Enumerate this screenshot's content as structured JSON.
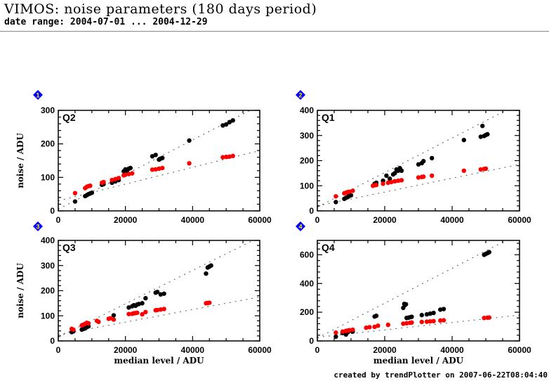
{
  "header": {
    "title": "VIMOS: noise parameters (180 days period)",
    "subtitle": "date range: 2004-07-01 ... 2004-12-29"
  },
  "footer": {
    "created": "created by trendPlotter on 2007-06-22T08:04:40"
  },
  "colors": {
    "series_a": "#000000",
    "series_b": "#ff0000",
    "badge": "#0000ff",
    "badge_text": "#ffee00",
    "fit_line": "#555555"
  },
  "chart_data": [
    {
      "type": "scatter",
      "badge": "1",
      "panel_label": "Q2",
      "xlabel": "",
      "ylabel": "noise / ADU",
      "xlim": [
        0,
        60000
      ],
      "ylim": [
        0,
        300
      ],
      "xticks": [
        0,
        20000,
        40000,
        60000
      ],
      "yticks": [
        0,
        100,
        200,
        300
      ],
      "grid": false,
      "fits": [
        {
          "color": "black",
          "x": [
            0,
            60000
          ],
          "y": [
            5,
            315
          ]
        },
        {
          "color": "red",
          "x": [
            0,
            60000
          ],
          "y": [
            30,
            180
          ]
        }
      ],
      "series": [
        {
          "name": "black",
          "points": [
            [
              5000,
              28
            ],
            [
              8000,
              44
            ],
            [
              8500,
              47
            ],
            [
              9000,
              50
            ],
            [
              9500,
              52
            ],
            [
              10000,
              54
            ],
            [
              13000,
              78
            ],
            [
              13500,
              80
            ],
            [
              16000,
              84
            ],
            [
              17000,
              88
            ],
            [
              18000,
              92
            ],
            [
              19500,
              118
            ],
            [
              20000,
              124
            ],
            [
              20500,
              120
            ],
            [
              21000,
              126
            ],
            [
              21500,
              128
            ],
            [
              28000,
              163
            ],
            [
              29000,
              167
            ],
            [
              30000,
              153
            ],
            [
              30500,
              156
            ],
            [
              31000,
              158
            ],
            [
              39000,
              210
            ],
            [
              49000,
              255
            ],
            [
              50000,
              258
            ],
            [
              51000,
              265
            ],
            [
              52000,
              270
            ]
          ]
        },
        {
          "name": "red",
          "points": [
            [
              5000,
              53
            ],
            [
              8000,
              68
            ],
            [
              8500,
              72
            ],
            [
              9000,
              74
            ],
            [
              9500,
              75
            ],
            [
              13000,
              84
            ],
            [
              13500,
              86
            ],
            [
              16000,
              92
            ],
            [
              17000,
              95
            ],
            [
              18000,
              98
            ],
            [
              19500,
              106
            ],
            [
              20000,
              108
            ],
            [
              21000,
              110
            ],
            [
              22000,
              112
            ],
            [
              28000,
              123
            ],
            [
              29000,
              124
            ],
            [
              30000,
              126
            ],
            [
              31000,
              128
            ],
            [
              39000,
              142
            ],
            [
              49000,
              160
            ],
            [
              50000,
              161
            ],
            [
              51000,
              162
            ],
            [
              52000,
              164
            ]
          ]
        }
      ]
    },
    {
      "type": "scatter",
      "badge": "2",
      "panel_label": "Q1",
      "xlabel": "",
      "ylabel": "",
      "xlim": [
        0,
        60000
      ],
      "ylim": [
        0,
        400
      ],
      "xticks": [
        0,
        20000,
        40000,
        60000
      ],
      "yticks": [
        0,
        100,
        200,
        300,
        400
      ],
      "grid": false,
      "fits": [
        {
          "color": "black",
          "x": [
            0,
            56000
          ],
          "y": [
            15,
            400
          ]
        },
        {
          "color": "red",
          "x": [
            0,
            60000
          ],
          "y": [
            20,
            185
          ]
        }
      ],
      "series": [
        {
          "name": "black",
          "points": [
            [
              5500,
              35
            ],
            [
              8000,
              48
            ],
            [
              8500,
              52
            ],
            [
              9000,
              55
            ],
            [
              9500,
              60
            ],
            [
              10000,
              62
            ],
            [
              17000,
              108
            ],
            [
              17500,
              112
            ],
            [
              19500,
              120
            ],
            [
              20500,
              140
            ],
            [
              21500,
              128
            ],
            [
              22500,
              145
            ],
            [
              23000,
              150
            ],
            [
              23500,
              165
            ],
            [
              24000,
              160
            ],
            [
              24500,
              170
            ],
            [
              25000,
              160
            ],
            [
              30000,
              185
            ],
            [
              31000,
              190
            ],
            [
              31500,
              198
            ],
            [
              34000,
              210
            ],
            [
              43500,
              282
            ],
            [
              48500,
              295
            ],
            [
              49000,
              338
            ],
            [
              49500,
              298
            ],
            [
              50000,
              302
            ],
            [
              50500,
              305
            ]
          ]
        },
        {
          "name": "red",
          "points": [
            [
              5500,
              58
            ],
            [
              8000,
              70
            ],
            [
              8500,
              72
            ],
            [
              9000,
              75
            ],
            [
              9500,
              76
            ],
            [
              10500,
              80
            ],
            [
              16500,
              100
            ],
            [
              17000,
              102
            ],
            [
              17500,
              103
            ],
            [
              19500,
              108
            ],
            [
              21000,
              112
            ],
            [
              22000,
              115
            ],
            [
              23000,
              118
            ],
            [
              24000,
              120
            ],
            [
              25000,
              122
            ],
            [
              30000,
              133
            ],
            [
              31000,
              135
            ],
            [
              31500,
              136
            ],
            [
              34000,
              140
            ],
            [
              43500,
              160
            ],
            [
              48500,
              165
            ],
            [
              49500,
              167
            ],
            [
              50000,
              168
            ]
          ]
        }
      ]
    },
    {
      "type": "scatter",
      "badge": "3",
      "panel_label": "Q3",
      "xlabel": "median level / ADU",
      "ylabel": "noise / ADU",
      "xlim": [
        0,
        60000
      ],
      "ylim": [
        0,
        400
      ],
      "xticks": [
        0,
        20000,
        40000,
        60000
      ],
      "yticks": [
        0,
        100,
        200,
        300,
        400
      ],
      "grid": false,
      "fits": [
        {
          "color": "black",
          "x": [
            0,
            58000
          ],
          "y": [
            15,
            400
          ]
        },
        {
          "color": "red",
          "x": [
            0,
            60000
          ],
          "y": [
            25,
            175
          ]
        }
      ],
      "series": [
        {
          "name": "black",
          "points": [
            [
              4000,
              35
            ],
            [
              4500,
              38
            ],
            [
              7000,
              45
            ],
            [
              7500,
              48
            ],
            [
              8000,
              50
            ],
            [
              8500,
              55
            ],
            [
              9000,
              58
            ],
            [
              16500,
              102
            ],
            [
              21000,
              133
            ],
            [
              22000,
              138
            ],
            [
              22500,
              142
            ],
            [
              23000,
              140
            ],
            [
              23500,
              145
            ],
            [
              24000,
              147
            ],
            [
              25000,
              150
            ],
            [
              26000,
              170
            ],
            [
              29000,
              192
            ],
            [
              29500,
              195
            ],
            [
              30500,
              185
            ],
            [
              31500,
              188
            ],
            [
              44000,
              268
            ],
            [
              44500,
              292
            ],
            [
              45000,
              296
            ],
            [
              45500,
              300
            ]
          ]
        },
        {
          "name": "red",
          "points": [
            [
              4000,
              48
            ],
            [
              4500,
              45
            ],
            [
              7000,
              62
            ],
            [
              7500,
              65
            ],
            [
              8000,
              68
            ],
            [
              8500,
              72
            ],
            [
              9000,
              70
            ],
            [
              11500,
              80
            ],
            [
              12000,
              76
            ],
            [
              15000,
              88
            ],
            [
              15500,
              90
            ],
            [
              16500,
              85
            ],
            [
              21000,
              107
            ],
            [
              22000,
              108
            ],
            [
              22500,
              110
            ],
            [
              23000,
              111
            ],
            [
              23500,
              112
            ],
            [
              25000,
              106
            ],
            [
              26000,
              115
            ],
            [
              29000,
              122
            ],
            [
              29500,
              123
            ],
            [
              30500,
              125
            ],
            [
              31500,
              127
            ],
            [
              44000,
              150
            ],
            [
              44500,
              151
            ],
            [
              45000,
              152
            ]
          ]
        }
      ]
    },
    {
      "type": "scatter",
      "badge": "4",
      "panel_label": "Q4",
      "xlabel": "median level / ADU",
      "ylabel": "",
      "xlim": [
        0,
        60000
      ],
      "ylim": [
        0,
        700
      ],
      "xticks": [
        0,
        20000,
        40000,
        60000
      ],
      "yticks": [
        0,
        200,
        400,
        600
      ],
      "grid": false,
      "fits": [
        {
          "color": "black",
          "x": [
            0,
            56000
          ],
          "y": [
            20,
            700
          ]
        },
        {
          "color": "red",
          "x": [
            0,
            60000
          ],
          "y": [
            25,
            180
          ]
        }
      ],
      "series": [
        {
          "name": "black",
          "points": [
            [
              5500,
              30
            ],
            [
              7500,
              55
            ],
            [
              8500,
              45
            ],
            [
              9000,
              60
            ],
            [
              9500,
              70
            ],
            [
              10500,
              65
            ],
            [
              17000,
              170
            ],
            [
              17500,
              175
            ],
            [
              25500,
              230
            ],
            [
              25800,
              258
            ],
            [
              26000,
              250
            ],
            [
              26300,
              255
            ],
            [
              26500,
              160
            ],
            [
              27000,
              162
            ],
            [
              27500,
              165
            ],
            [
              28000,
              168
            ],
            [
              31000,
              180
            ],
            [
              32500,
              185
            ],
            [
              33500,
              190
            ],
            [
              34500,
              195
            ],
            [
              36500,
              218
            ],
            [
              37500,
              222
            ],
            [
              49500,
              600
            ],
            [
              50000,
              606
            ],
            [
              50500,
              612
            ],
            [
              51000,
              618
            ]
          ]
        },
        {
          "name": "red",
          "points": [
            [
              5500,
              58
            ],
            [
              7500,
              65
            ],
            [
              8500,
              70
            ],
            [
              9000,
              72
            ],
            [
              9500,
              75
            ],
            [
              10500,
              78
            ],
            [
              14500,
              92
            ],
            [
              15500,
              96
            ],
            [
              17000,
              98
            ],
            [
              18000,
              106
            ],
            [
              21000,
              112
            ],
            [
              25500,
              120
            ],
            [
              26500,
              123
            ],
            [
              27500,
              126
            ],
            [
              28000,
              128
            ],
            [
              31000,
              132
            ],
            [
              32500,
              134
            ],
            [
              33500,
              136
            ],
            [
              34500,
              138
            ],
            [
              36500,
              142
            ],
            [
              37500,
              144
            ],
            [
              49500,
              160
            ],
            [
              50500,
              162
            ],
            [
              51000,
              163
            ]
          ]
        }
      ]
    }
  ]
}
